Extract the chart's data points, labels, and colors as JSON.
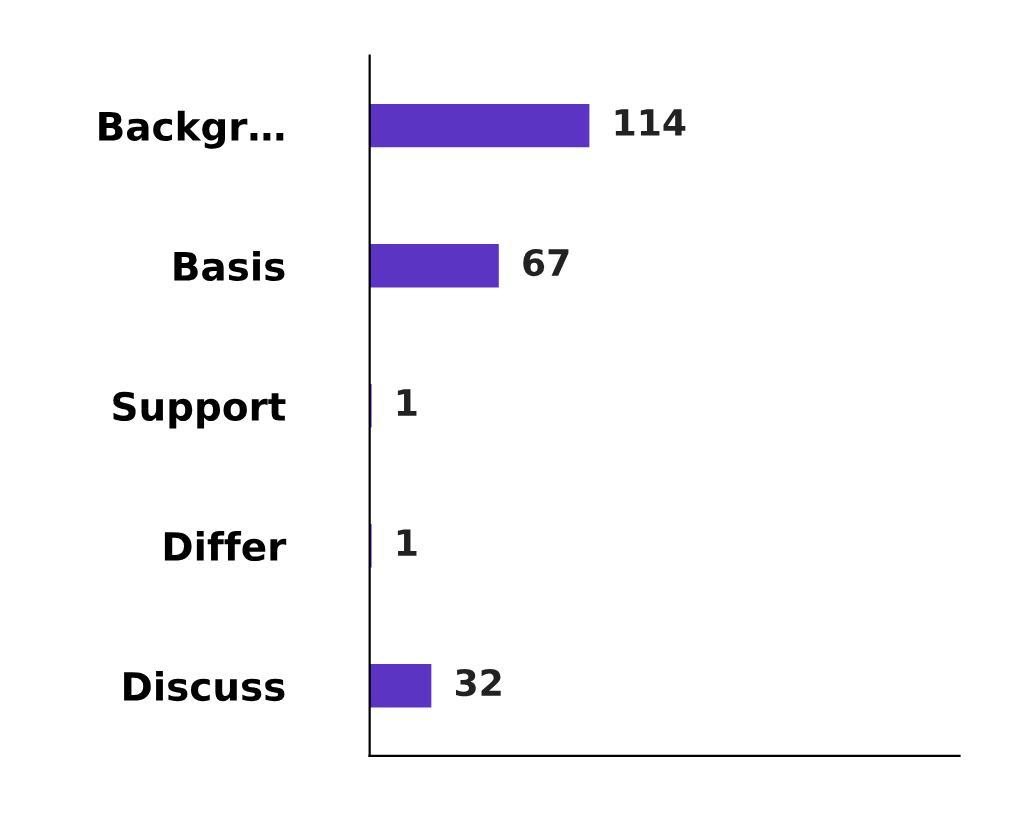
{
  "chart_data": {
    "type": "bar",
    "orientation": "horizontal",
    "categories": [
      "Backgr…",
      "Basis",
      "Support",
      "Differ",
      "Discuss"
    ],
    "values": [
      114,
      67,
      1,
      1,
      32
    ],
    "color": "#5b34c4",
    "data_labels": true,
    "xlim": [
      0,
      306
    ],
    "tick_labels": "y",
    "grid": false,
    "legend": false
  }
}
